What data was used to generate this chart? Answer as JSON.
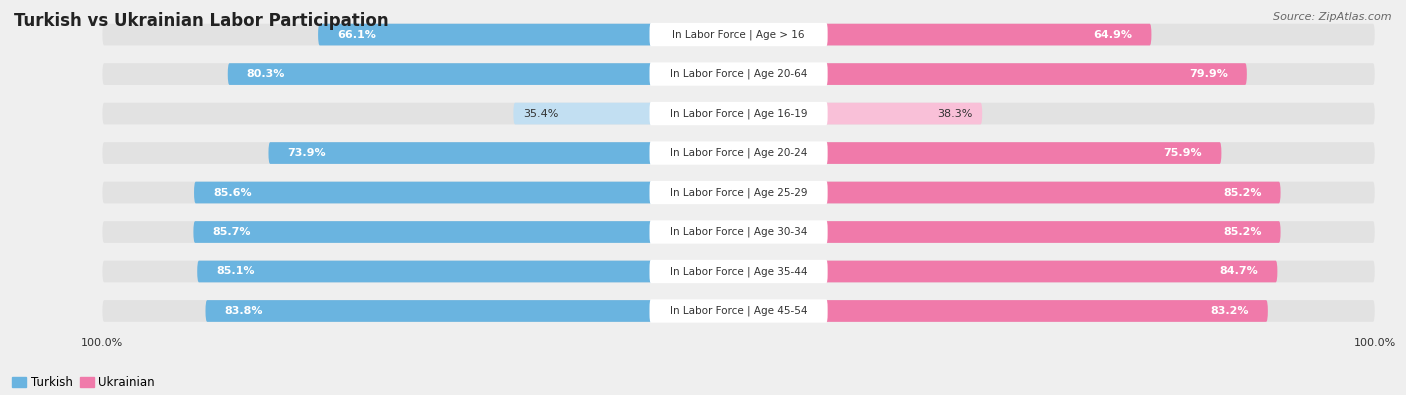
{
  "title": "Turkish vs Ukrainian Labor Participation",
  "source": "Source: ZipAtlas.com",
  "categories": [
    "In Labor Force | Age > 16",
    "In Labor Force | Age 20-64",
    "In Labor Force | Age 16-19",
    "In Labor Force | Age 20-24",
    "In Labor Force | Age 25-29",
    "In Labor Force | Age 30-34",
    "In Labor Force | Age 35-44",
    "In Labor Force | Age 45-54"
  ],
  "turkish": [
    66.1,
    80.3,
    35.4,
    73.9,
    85.6,
    85.7,
    85.1,
    83.8
  ],
  "ukrainian": [
    64.9,
    79.9,
    38.3,
    75.9,
    85.2,
    85.2,
    84.7,
    83.2
  ],
  "turkish_color": "#6ab4e0",
  "turkish_color_light": "#c2dff2",
  "ukrainian_color": "#f07aaa",
  "ukrainian_color_light": "#f9c0d8",
  "bg_color": "#efefef",
  "bar_bg_color": "#e2e2e2",
  "title_color": "#222222",
  "text_color": "#333333",
  "white": "#ffffff",
  "label_fontsize": 8.0,
  "cat_fontsize": 7.5,
  "title_fontsize": 12,
  "source_fontsize": 8,
  "legend_fontsize": 8.5,
  "max_val": 100.0,
  "legend_turkish": "Turkish",
  "legend_ukrainian": "Ukrainian"
}
